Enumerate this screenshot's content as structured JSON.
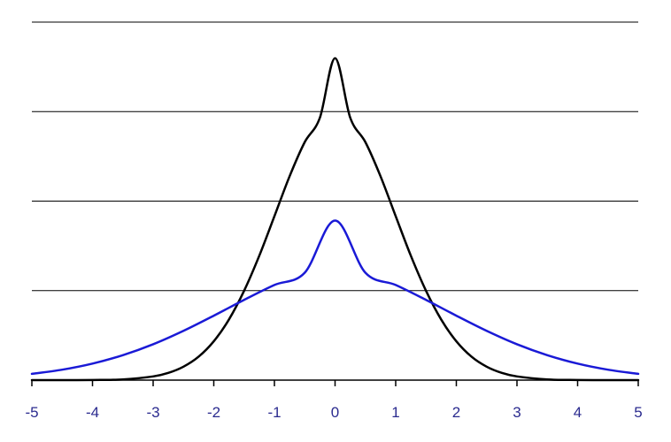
{
  "chart_data": {
    "type": "line",
    "title": "",
    "xlabel": "",
    "ylabel": "",
    "xlim": [
      -5,
      5
    ],
    "ylim": [
      0,
      0.6
    ],
    "x_ticks": [
      -5,
      -4,
      -3,
      -2,
      -1,
      0,
      1,
      2,
      3,
      4,
      5
    ],
    "x_tick_labels": [
      "-5",
      "-4",
      "-3",
      "-2",
      "-1",
      "0",
      "1",
      "2",
      "3",
      "4",
      "5"
    ],
    "y_gridlines": [
      0.15,
      0.3,
      0.45,
      0.6
    ],
    "y_tick_labels_shown": false,
    "grid": "horizontal",
    "legend": "none",
    "series": [
      {
        "color": "#000000",
        "x": [
          -5,
          -4.5,
          -4,
          -3.5,
          -3,
          -2.75,
          -2.5,
          -2.25,
          -2,
          -1.75,
          -1.5,
          -1.25,
          -1,
          -0.75,
          -0.5,
          -0.25,
          0,
          0.25,
          0.5,
          0.75,
          1,
          1.25,
          1.5,
          1.75,
          2,
          2.25,
          2.5,
          2.75,
          3,
          3.5,
          4,
          4.5,
          5
        ],
        "y": [
          0.0,
          0.0,
          0.0002,
          0.0012,
          0.0062,
          0.0121,
          0.0225,
          0.0393,
          0.0651,
          0.1016,
          0.1497,
          0.2084,
          0.2747,
          0.3416,
          0.3989,
          0.4398,
          0.5395,
          0.4398,
          0.3989,
          0.3416,
          0.2747,
          0.2084,
          0.1497,
          0.1016,
          0.0651,
          0.0393,
          0.0225,
          0.0121,
          0.0062,
          0.0012,
          0.0002,
          0.0,
          0.0
        ]
      },
      {
        "color": "#1a1ad6",
        "x": [
          -5,
          -4.5,
          -4,
          -3.5,
          -3,
          -2.5,
          -2,
          -1.5,
          -1,
          -0.5,
          0,
          0.5,
          1,
          1.5,
          2,
          2.5,
          3,
          3.5,
          4,
          4.5,
          5
        ],
        "y": [
          0.0105,
          0.0175,
          0.0277,
          0.0418,
          0.0601,
          0.0826,
          0.108,
          0.1345,
          0.1595,
          0.18,
          0.2675,
          0.18,
          0.1595,
          0.1345,
          0.108,
          0.0826,
          0.0601,
          0.0418,
          0.0277,
          0.0175,
          0.0105
        ]
      }
    ],
    "colors": {
      "axis": "#000000",
      "gridline": "#000000",
      "tick_label": "#2b2b8f"
    }
  }
}
